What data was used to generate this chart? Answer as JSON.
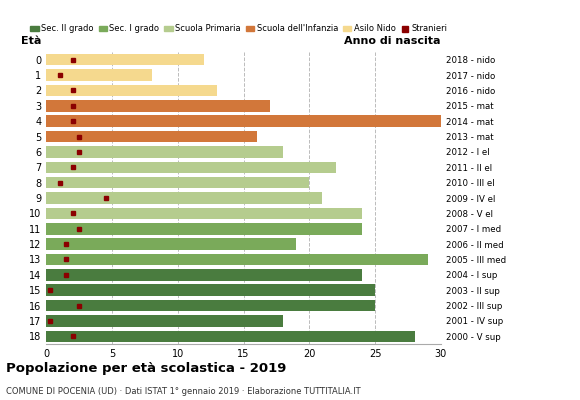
{
  "ages": [
    18,
    17,
    16,
    15,
    14,
    13,
    12,
    11,
    10,
    9,
    8,
    7,
    6,
    5,
    4,
    3,
    2,
    1,
    0
  ],
  "bar_values": [
    28,
    18,
    25,
    25,
    24,
    29,
    19,
    24,
    24,
    21,
    20,
    22,
    18,
    16,
    30,
    17,
    13,
    8,
    12
  ],
  "stranieri": [
    2,
    0.3,
    2.5,
    0.3,
    1.5,
    1.5,
    1.5,
    2.5,
    2,
    4.5,
    1,
    2,
    2.5,
    2.5,
    2,
    2,
    2,
    1,
    2
  ],
  "bar_colors": [
    "#4a7c3f",
    "#4a7c3f",
    "#4a7c3f",
    "#4a7c3f",
    "#4a7c3f",
    "#7aaa5a",
    "#7aaa5a",
    "#7aaa5a",
    "#b5cc8e",
    "#b5cc8e",
    "#b5cc8e",
    "#b5cc8e",
    "#b5cc8e",
    "#d2773a",
    "#d2773a",
    "#d2773a",
    "#f5d98e",
    "#f5d98e",
    "#f5d98e"
  ],
  "right_labels": [
    "2000 - V sup",
    "2001 - IV sup",
    "2002 - III sup",
    "2003 - II sup",
    "2004 - I sup",
    "2005 - III med",
    "2006 - II med",
    "2007 - I med",
    "2008 - V el",
    "2009 - IV el",
    "2010 - III el",
    "2011 - II el",
    "2012 - I el",
    "2013 - mat",
    "2014 - mat",
    "2015 - mat",
    "2016 - nido",
    "2017 - nido",
    "2018 - nido"
  ],
  "title": "Popolazione per età scolastica - 2019",
  "subtitle": "COMUNE DI POCENIA (UD) · Dati ISTAT 1° gennaio 2019 · Elaborazione TUTTITALIA.IT",
  "xlabel_left": "Età",
  "xlabel_right": "Anno di nascita",
  "xlim": [
    0,
    30
  ],
  "xticks": [
    0,
    5,
    10,
    15,
    20,
    25,
    30
  ],
  "legend_labels": [
    "Sec. II grado",
    "Sec. I grado",
    "Scuola Primaria",
    "Scuola dell'Infanzia",
    "Asilo Nido",
    "Stranieri"
  ],
  "legend_colors": [
    "#4a7c3f",
    "#7aaa5a",
    "#b5cc8e",
    "#d2773a",
    "#f5d98e",
    "#8b0000"
  ],
  "stranieri_color": "#8b0000",
  "bg_color": "#ffffff",
  "grid_color": "#bbbbbb"
}
